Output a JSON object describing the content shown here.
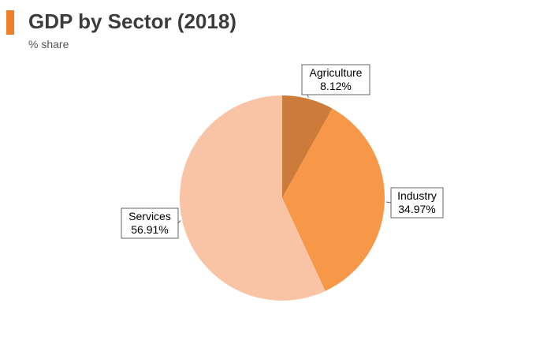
{
  "header": {
    "title": "GDP by Sector (2018)",
    "subtitle": "% share",
    "accent_color": "#f07f2b"
  },
  "chart_data": {
    "type": "pie",
    "title": "GDP by Sector (2018)",
    "subtitle": "% share",
    "slices": [
      {
        "name": "Agriculture",
        "value": 8.12,
        "label": "8.12%",
        "color": "#cd7b3a"
      },
      {
        "name": "Industry",
        "value": 34.97,
        "label": "34.97%",
        "color": "#f79848"
      },
      {
        "name": "Services",
        "value": 56.91,
        "label": "56.91%",
        "color": "#f9c3a6"
      }
    ],
    "start": "12 o'clock",
    "direction": "clockwise",
    "legend": "none"
  }
}
